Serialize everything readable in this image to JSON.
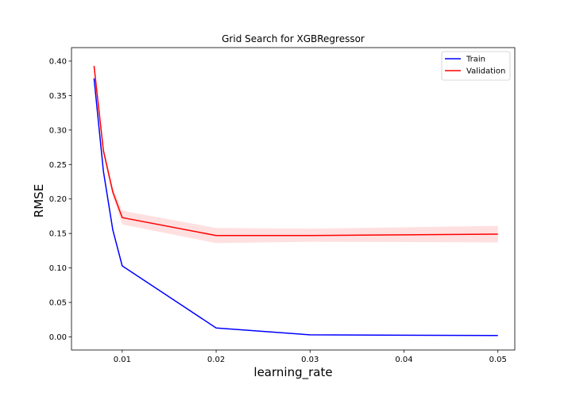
{
  "chart_data": {
    "type": "line",
    "title": "Grid Search for XGBRegressor",
    "xlabel": "learning_rate",
    "ylabel": "RMSE",
    "xlim": [
      0.0046,
      0.0518
    ],
    "ylim": [
      -0.019,
      0.4195
    ],
    "x_ticks": [
      0.01,
      0.02,
      0.03,
      0.04,
      0.05
    ],
    "x_tick_labels": [
      "0.01",
      "0.02",
      "0.03",
      "0.04",
      "0.05"
    ],
    "y_ticks": [
      0.0,
      0.05,
      0.1,
      0.15,
      0.2,
      0.25,
      0.3,
      0.35,
      0.4
    ],
    "y_tick_labels": [
      "0.00",
      "0.05",
      "0.10",
      "0.15",
      "0.20",
      "0.25",
      "0.30",
      "0.35",
      "0.40"
    ],
    "grid": false,
    "legend_position": "top-right",
    "series": [
      {
        "name": "Train",
        "color": "#0000ff",
        "x": [
          0.007,
          0.008,
          0.009,
          0.01,
          0.02,
          0.03,
          0.05
        ],
        "values": [
          0.375,
          0.24,
          0.155,
          0.103,
          0.013,
          0.003,
          0.002
        ]
      },
      {
        "name": "Validation",
        "color": "#ff0000",
        "band_color": "#ff0000",
        "x": [
          0.007,
          0.008,
          0.009,
          0.01,
          0.02,
          0.03,
          0.05
        ],
        "values": [
          0.393,
          0.27,
          0.21,
          0.173,
          0.147,
          0.147,
          0.149
        ],
        "lower": [
          0.389,
          0.264,
          0.203,
          0.163,
          0.136,
          0.138,
          0.137
        ],
        "upper": [
          0.397,
          0.276,
          0.217,
          0.183,
          0.158,
          0.157,
          0.161
        ]
      }
    ]
  }
}
